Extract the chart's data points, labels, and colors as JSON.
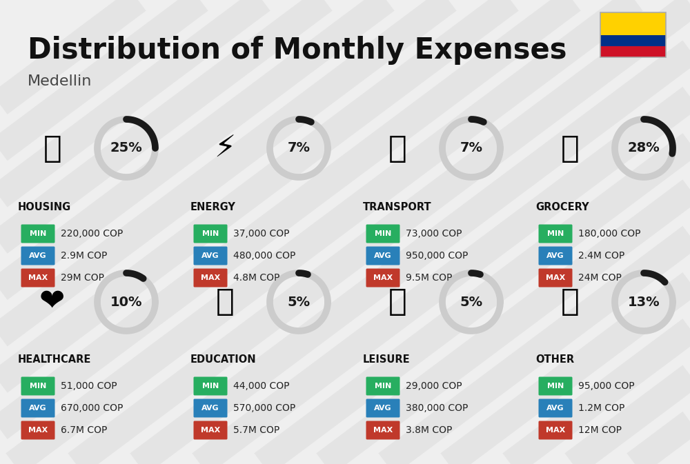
{
  "title": "Distribution of Monthly Expenses",
  "subtitle": "Medellin",
  "bg_color": "#efefef",
  "title_color": "#111111",
  "subtitle_color": "#444444",
  "categories": [
    {
      "name": "HOUSING",
      "pct": 25,
      "min": "220,000 COP",
      "avg": "2.9M COP",
      "max": "29M COP",
      "col": 0,
      "row": 0
    },
    {
      "name": "ENERGY",
      "pct": 7,
      "min": "37,000 COP",
      "avg": "480,000 COP",
      "max": "4.8M COP",
      "col": 1,
      "row": 0
    },
    {
      "name": "TRANSPORT",
      "pct": 7,
      "min": "73,000 COP",
      "avg": "950,000 COP",
      "max": "9.5M COP",
      "col": 2,
      "row": 0
    },
    {
      "name": "GROCERY",
      "pct": 28,
      "min": "180,000 COP",
      "avg": "2.4M COP",
      "max": "24M COP",
      "col": 3,
      "row": 0
    },
    {
      "name": "HEALTHCARE",
      "pct": 10,
      "min": "51,000 COP",
      "avg": "670,000 COP",
      "max": "6.7M COP",
      "col": 0,
      "row": 1
    },
    {
      "name": "EDUCATION",
      "pct": 5,
      "min": "44,000 COP",
      "avg": "570,000 COP",
      "max": "5.7M COP",
      "col": 1,
      "row": 1
    },
    {
      "name": "LEISURE",
      "pct": 5,
      "min": "29,000 COP",
      "avg": "380,000 COP",
      "max": "3.8M COP",
      "col": 2,
      "row": 1
    },
    {
      "name": "OTHER",
      "pct": 13,
      "min": "95,000 COP",
      "avg": "1.2M COP",
      "max": "12M COP",
      "col": 3,
      "row": 1
    }
  ],
  "min_color": "#27ae60",
  "avg_color": "#2980b9",
  "max_color": "#c0392b",
  "ring_filled": "#1a1a1a",
  "ring_empty": "#cccccc",
  "colombia_yellow": "#FFD100",
  "colombia_blue": "#003087",
  "colombia_red": "#CE1126",
  "stripe_color": "#d8d8d8",
  "stripe_alpha": 0.45
}
